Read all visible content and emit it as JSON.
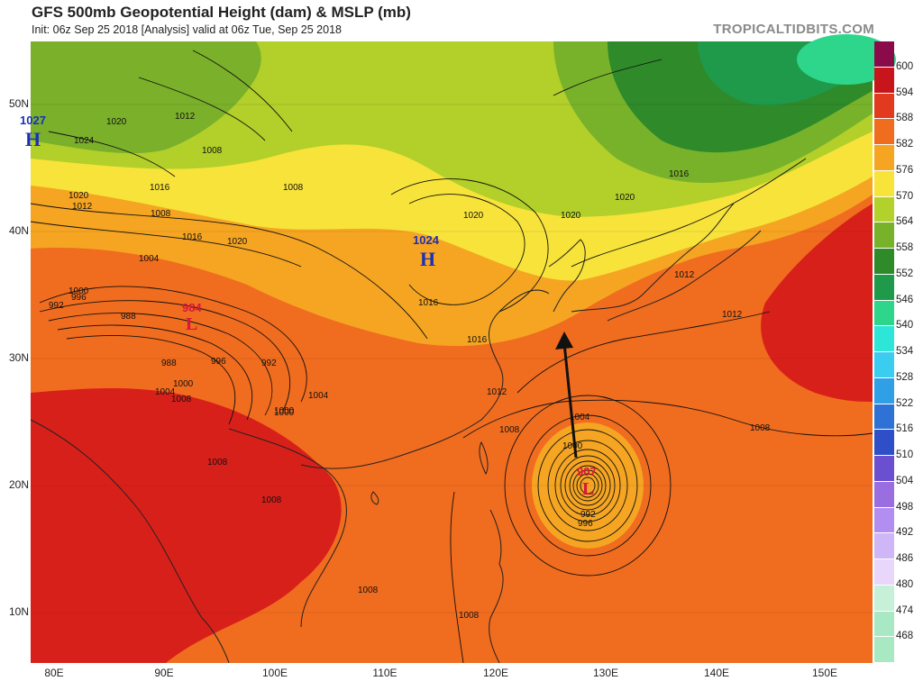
{
  "header": {
    "title": "GFS 500mb Geopotential Height (dam) & MSLP (mb)",
    "subtitle": "Init: 06z Sep 25 2018   [Analysis]   valid at 06z Tue, Sep 25 2018",
    "credit": "TROPICALTIDBITS.COM"
  },
  "axes": {
    "lat_labels": [
      "50N",
      "40N",
      "30N",
      "20N",
      "10N"
    ],
    "lon_labels": [
      "80E",
      "90E",
      "100E",
      "110E",
      "120E",
      "130E",
      "140E",
      "150E"
    ]
  },
  "colorbar": {
    "levels": [
      "600",
      "594",
      "588",
      "582",
      "576",
      "570",
      "564",
      "558",
      "552",
      "546",
      "540",
      "534",
      "528",
      "522",
      "516",
      "510",
      "504",
      "498",
      "492",
      "486",
      "480",
      "474",
      "468"
    ],
    "colors": [
      "#8a0a4a",
      "#c8151c",
      "#e23a1e",
      "#f06c1f",
      "#f5a522",
      "#f7e33a",
      "#b2d12b",
      "#78b22a",
      "#2f8a2a",
      "#1e9a4a",
      "#2ed68c",
      "#2ee6d8",
      "#3acdf0",
      "#2f9fe6",
      "#2f72d6",
      "#2f4fc8",
      "#6a4fd0",
      "#9a6ee0",
      "#b28ef0",
      "#ceb6f7",
      "#e8d6fb",
      "#c6f0d8",
      "#a8e8c2"
    ]
  },
  "pressure_centers": [
    {
      "type": "H",
      "value": "1027"
    },
    {
      "type": "H",
      "value": "1024"
    },
    {
      "type": "L",
      "value": "984"
    },
    {
      "type": "L",
      "value": "907"
    }
  ],
  "isobar_labels": [
    "1020",
    "1024",
    "1012",
    "1008",
    "1016",
    "1020",
    "1012",
    "1008",
    "1004",
    "1000",
    "996",
    "992",
    "988",
    "1008",
    "1004",
    "1000",
    "988",
    "996",
    "992",
    "1004",
    "1008",
    "1000",
    "1020",
    "1016",
    "1020",
    "1016",
    "1012",
    "1016",
    "1020",
    "1020",
    "1016",
    "1012",
    "1008",
    "1004",
    "1012",
    "1008",
    "1000",
    "1008",
    "1008",
    "992",
    "996",
    "1008",
    "1008",
    "1000"
  ]
}
